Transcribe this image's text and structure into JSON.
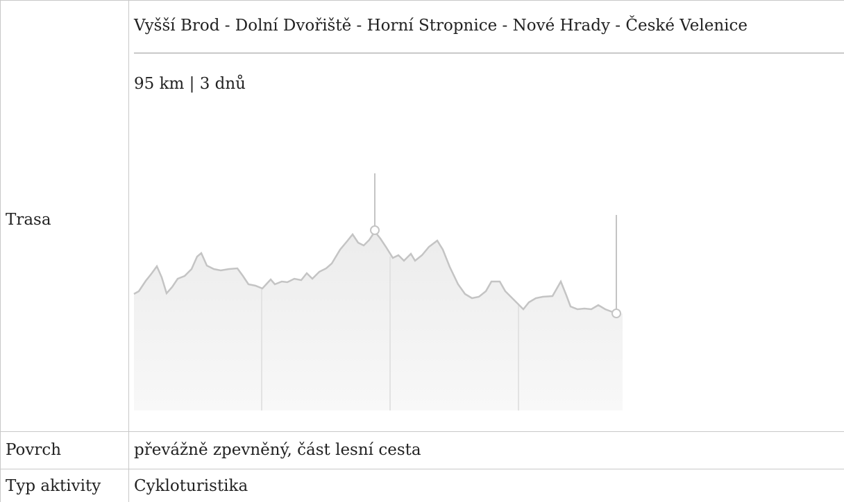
{
  "table": {
    "rows": [
      {
        "label": "Trasa",
        "route": "Vyšší Brod - Dolní Dvořiště - Horní Stropnice - Nové Hrady - České Velenice",
        "summary": "95 km | 3 dnů"
      },
      {
        "label": "Povrch",
        "value": "převážně zpevněný, část lesní cesta"
      },
      {
        "label": "Typ aktivity",
        "value": "Cykloturistika"
      }
    ]
  }
}
